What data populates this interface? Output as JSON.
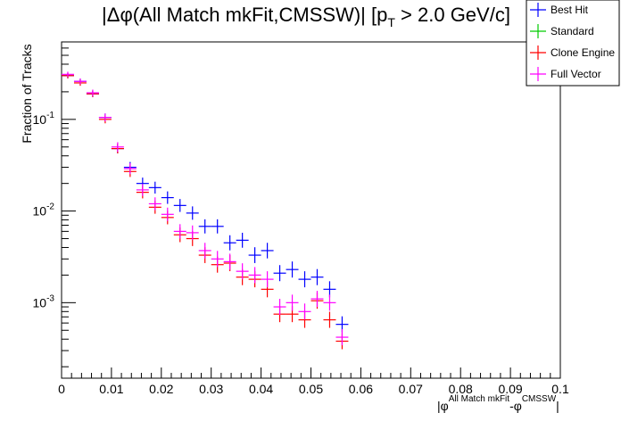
{
  "chart_data": {
    "type": "scatter",
    "title": {
      "prefix": "|",
      "delta": "Δ",
      "phi": "φ",
      "main": "(All Match mkFit,CMSSW)| [p",
      "sub": "T",
      "suffix": " > 2.0 GeV/c]"
    },
    "ylabel": "Fraction of Tracks",
    "xlabel": {
      "open": "|",
      "phi1": "φ",
      "sup1": "All Match mkFit",
      "mid": "-",
      "phi2": "φ",
      "sup2": "CMSSW",
      "close": "|"
    },
    "xlim": [
      0,
      0.1
    ],
    "ylim": [
      0.00015,
      0.7
    ],
    "yscale": "log",
    "grid": false,
    "legend_position": "top-right",
    "bin_width": 0.0025,
    "x_ticks": [
      "0",
      "0.01",
      "0.02",
      "0.03",
      "0.04",
      "0.05",
      "0.06",
      "0.07",
      "0.08",
      "0.09",
      "0.1"
    ],
    "y_ticks": [
      {
        "base": "10",
        "exp": "-3",
        "value": 0.001
      },
      {
        "base": "10",
        "exp": "-2",
        "value": 0.01
      },
      {
        "base": "10",
        "exp": "-1",
        "value": 0.1
      }
    ],
    "x": [
      0.00125,
      0.00375,
      0.00625,
      0.00875,
      0.01125,
      0.01375,
      0.01625,
      0.01875,
      0.02125,
      0.02375,
      0.02625,
      0.02875,
      0.03125,
      0.03375,
      0.03625,
      0.03875,
      0.04125,
      0.04375,
      0.04625,
      0.04875,
      0.05125
    ],
    "series": [
      {
        "name": "Best Hit",
        "color": "#0000ff",
        "values": [
          0.3,
          0.26,
          0.19,
          0.105,
          0.048,
          0.03,
          0.02,
          0.018,
          0.014,
          0.0115,
          0.0095,
          0.0068,
          0.0068,
          0.0045,
          0.0048,
          0.0033,
          0.0037,
          0.0021,
          0.0023,
          0.0018,
          0.0019,
          0.0014,
          0.00058
        ],
        "x": [
          0.00125,
          0.00375,
          0.00625,
          0.00875,
          0.01125,
          0.01375,
          0.01625,
          0.01875,
          0.02125,
          0.02375,
          0.02625,
          0.02875,
          0.03125,
          0.03375,
          0.03625,
          0.03875,
          0.04125,
          0.04375,
          0.04625,
          0.04875,
          0.05125,
          0.05375,
          0.05625
        ]
      },
      {
        "name": "Standard",
        "color": "#00cc00",
        "values": [],
        "x": []
      },
      {
        "name": "Clone Engine",
        "color": "#ff0000",
        "values": [
          0.3,
          0.25,
          0.19,
          0.1,
          0.048,
          0.027,
          0.016,
          0.011,
          0.0085,
          0.0055,
          0.005,
          0.0033,
          0.0026,
          0.0027,
          0.0019,
          0.0018,
          0.0014,
          0.00075,
          0.00075,
          0.00065,
          0.00105,
          0.00065,
          0.00038
        ],
        "x": [
          0.00125,
          0.00375,
          0.00625,
          0.00875,
          0.01125,
          0.01375,
          0.01625,
          0.01875,
          0.02125,
          0.02375,
          0.02625,
          0.02875,
          0.03125,
          0.03375,
          0.03625,
          0.03875,
          0.04125,
          0.04375,
          0.04625,
          0.04875,
          0.05125,
          0.05375,
          0.05625
        ]
      },
      {
        "name": "Full Vector",
        "color": "#ff00ff",
        "values": [
          0.31,
          0.26,
          0.195,
          0.105,
          0.05,
          0.029,
          0.017,
          0.012,
          0.0092,
          0.006,
          0.0058,
          0.0037,
          0.003,
          0.0028,
          0.0022,
          0.002,
          0.0018,
          0.0009,
          0.001,
          0.0008,
          0.0011,
          0.001,
          0.00042
        ],
        "x": [
          0.00125,
          0.00375,
          0.00625,
          0.00875,
          0.01125,
          0.01375,
          0.01625,
          0.01875,
          0.02125,
          0.02375,
          0.02625,
          0.02875,
          0.03125,
          0.03375,
          0.03625,
          0.03875,
          0.04125,
          0.04375,
          0.04625,
          0.04875,
          0.05125,
          0.05375,
          0.05625
        ]
      }
    ]
  }
}
